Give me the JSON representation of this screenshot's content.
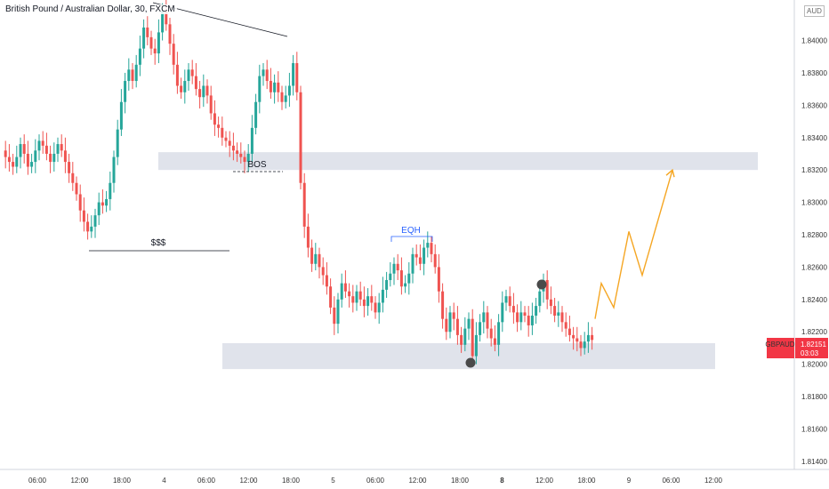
{
  "header": {
    "title": "British Pound / Australian Dollar, 30, FXCM",
    "currency": "AUD"
  },
  "price_badge": {
    "symbol": "GBPAUD",
    "price": "1.82151",
    "countdown": "03:03",
    "color": "#f23645"
  },
  "colors": {
    "up": "#26a69a",
    "down": "#ef5350",
    "zone": "#e0e3eb",
    "arrow": "#f5a623",
    "eqh": "#2962ff",
    "line": "#131722"
  },
  "chart_data": {
    "type": "candlestick",
    "title": "British Pound / Australian Dollar, 30, FXCM",
    "ylim": [
      1.8135,
      1.8425
    ],
    "y_ticks": [
      "1.84000",
      "1.83800",
      "1.83600",
      "1.83400",
      "1.83200",
      "1.83000",
      "1.82800",
      "1.82600",
      "1.82400",
      "1.82200",
      "1.82000",
      "1.81800",
      "1.81600",
      "1.81400"
    ],
    "y_tick_values": [
      1.84,
      1.838,
      1.836,
      1.834,
      1.832,
      1.83,
      1.828,
      1.826,
      1.824,
      1.822,
      1.82,
      1.818,
      1.816,
      1.814
    ],
    "x_ticks": [
      {
        "label": "06:00",
        "bold": false
      },
      {
        "label": "12:00",
        "bold": false
      },
      {
        "label": "18:00",
        "bold": false
      },
      {
        "label": "4",
        "bold": false
      },
      {
        "label": "06:00",
        "bold": false
      },
      {
        "label": "12:00",
        "bold": false
      },
      {
        "label": "18:00",
        "bold": false
      },
      {
        "label": "5",
        "bold": false
      },
      {
        "label": "06:00",
        "bold": false
      },
      {
        "label": "12:00",
        "bold": false
      },
      {
        "label": "18:00",
        "bold": false
      },
      {
        "label": "8",
        "bold": true
      },
      {
        "label": "12:00",
        "bold": false
      },
      {
        "label": "18:00",
        "bold": false
      },
      {
        "label": "9",
        "bold": false
      },
      {
        "label": "06:00",
        "bold": false
      },
      {
        "label": "12:00",
        "bold": false
      }
    ],
    "price_path": [
      1.8332,
      1.8328,
      1.8325,
      1.8322,
      1.8328,
      1.8336,
      1.833,
      1.8322,
      1.8325,
      1.8332,
      1.8338,
      1.8335,
      1.833,
      1.8325,
      1.833,
      1.8336,
      1.8332,
      1.8325,
      1.8318,
      1.8312,
      1.8305,
      1.8295,
      1.8288,
      1.8282,
      1.8285,
      1.8292,
      1.83,
      1.8298,
      1.8302,
      1.8312,
      1.8328,
      1.8345,
      1.8362,
      1.8375,
      1.8382,
      1.8375,
      1.8385,
      1.8395,
      1.8408,
      1.8402,
      1.8395,
      1.8392,
      1.8405,
      1.8418,
      1.841,
      1.8398,
      1.8385,
      1.8372,
      1.8368,
      1.8375,
      1.8382,
      1.8378,
      1.837,
      1.8365,
      1.8372,
      1.8366,
      1.8355,
      1.8348,
      1.8346,
      1.834,
      1.8338,
      1.8335,
      1.8332,
      1.833,
      1.8328,
      1.8325,
      1.833,
      1.8346,
      1.8362,
      1.8378,
      1.8382,
      1.8375,
      1.8368,
      1.8374,
      1.8368,
      1.8362,
      1.8366,
      1.8372,
      1.8386,
      1.8368,
      1.8312,
      1.8285,
      1.8272,
      1.8262,
      1.8268,
      1.826,
      1.8255,
      1.8248,
      1.8235,
      1.8225,
      1.824,
      1.825,
      1.8245,
      1.8242,
      1.8238,
      1.8245,
      1.824,
      1.8236,
      1.8242,
      1.8238,
      1.8232,
      1.8238,
      1.8246,
      1.8252,
      1.8256,
      1.8262,
      1.8258,
      1.8248,
      1.825,
      1.8256,
      1.8268,
      1.8266,
      1.8262,
      1.8272,
      1.8275,
      1.8268,
      1.826,
      1.8245,
      1.8228,
      1.822,
      1.8232,
      1.8228,
      1.8218,
      1.8212,
      1.8222,
      1.8228,
      1.8205,
      1.8218,
      1.8226,
      1.8232,
      1.8222,
      1.8216,
      1.8212,
      1.8226,
      1.8238,
      1.8242,
      1.8236,
      1.8232,
      1.8226,
      1.8232,
      1.823,
      1.8224,
      1.823,
      1.8236,
      1.8245,
      1.8252,
      1.824,
      1.8236,
      1.823,
      1.8232,
      1.8226,
      1.8222,
      1.8218,
      1.8216,
      1.8214,
      1.821,
      1.8214,
      1.8218,
      1.8215
    ],
    "projection": [
      1.8228,
      1.825,
      1.8235,
      1.8282,
      1.8255,
      1.832
    ],
    "zones": [
      {
        "label": "BOS",
        "top": 1.8331,
        "bottom": 1.832
      },
      {
        "label": "",
        "top": 1.8213,
        "bottom": 1.8197
      }
    ],
    "annotations": {
      "sss": "$$$",
      "bos": "BOS",
      "eqh": "EQH"
    }
  }
}
